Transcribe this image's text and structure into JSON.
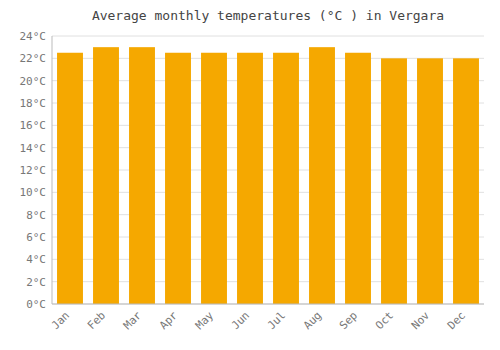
{
  "chart_data": {
    "type": "bar",
    "title": "Average monthly temperatures (°C ) in Vergara",
    "categories": [
      "Jan",
      "Feb",
      "Mar",
      "Apr",
      "May",
      "Jun",
      "Jul",
      "Aug",
      "Sep",
      "Oct",
      "Nov",
      "Dec"
    ],
    "values": [
      22.5,
      23.0,
      23.0,
      22.5,
      22.5,
      22.5,
      22.5,
      23.0,
      22.5,
      22.0,
      22.0,
      22.0
    ],
    "color": "#F5A800",
    "ylim": [
      0,
      24
    ],
    "yticks": [
      {
        "value": 0,
        "label": "0°C"
      },
      {
        "value": 2,
        "label": "2°C"
      },
      {
        "value": 4,
        "label": "4°C"
      },
      {
        "value": 6,
        "label": "6°C"
      },
      {
        "value": 8,
        "label": "8°C"
      },
      {
        "value": 10,
        "label": "10°C"
      },
      {
        "value": 12,
        "label": "12°C"
      },
      {
        "value": 14,
        "label": "14°C"
      },
      {
        "value": 16,
        "label": "16°C"
      },
      {
        "value": 18,
        "label": "18°C"
      },
      {
        "value": 20,
        "label": "20°C"
      },
      {
        "value": 22,
        "label": "22°C"
      },
      {
        "value": 24,
        "label": "24°C"
      }
    ],
    "grid": true
  }
}
